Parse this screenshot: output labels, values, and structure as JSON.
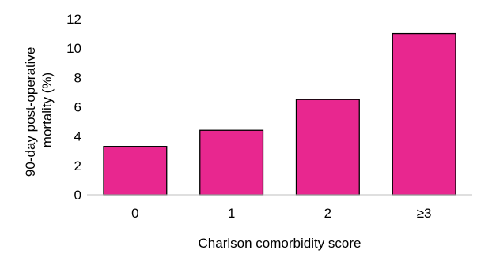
{
  "chart_data": {
    "type": "bar",
    "categories": [
      "0",
      "1",
      "2",
      "≥3"
    ],
    "values": [
      3.3,
      4.4,
      6.5,
      11.0
    ],
    "xlabel": "Charlson comorbidity score",
    "ylabel_lines": [
      "90-day post-operative",
      "mortality (%)"
    ],
    "ylim": [
      0,
      12
    ],
    "yticks": [
      0,
      2,
      4,
      6,
      8,
      10,
      12
    ],
    "grid": false,
    "legend": "none",
    "bar_color": "#e8278f",
    "bar_edge_color": "#000000"
  }
}
